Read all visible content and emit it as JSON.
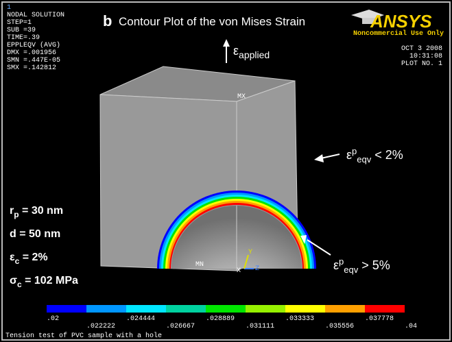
{
  "header": {
    "panel_label": "b",
    "title": "Contour Plot of the von Mises Strain"
  },
  "info": [
    "1",
    "NODAL SOLUTION",
    "STEP=1",
    "SUB =39",
    "TIME=.39",
    "EPPLEQV   (AVG)",
    "DMX =.001956",
    "SMN =.447E-05",
    "SMX =.142812"
  ],
  "logo": {
    "name": "ANSYS",
    "note": "Noncommercial Use Only"
  },
  "stamp": [
    "OCT  3 2008",
    "10:31:08",
    "PLOT NO.   1"
  ],
  "annotations": {
    "applied": {
      "symbol": "ε",
      "sub": "applied"
    },
    "low": {
      "symbol": "ε",
      "sup": "p",
      "sub": "eqv",
      "text": " < 2%"
    },
    "high": {
      "symbol": "ε",
      "sup": "p",
      "sub": "eqv",
      "text": " > 5%"
    }
  },
  "params": [
    {
      "base": "r",
      "sub": "p",
      "text": " = 30 nm"
    },
    {
      "base": "d = 50 nm"
    },
    {
      "base": "ε",
      "sub": "c",
      "text": " = 2%"
    },
    {
      "base": "σ",
      "sub": "c",
      "text": " = 102 MPa"
    }
  ],
  "markers": {
    "mx": "MX",
    "mn": "MN",
    "y": "Y",
    "x": "X",
    "z": "Z"
  },
  "legend": {
    "colors": [
      "#0000ff",
      "#0096ff",
      "#00e6ff",
      "#00d2a0",
      "#00e600",
      "#96f000",
      "#ffff00",
      "#ffa000",
      "#ff0000"
    ],
    "labels": [
      ".02",
      ".022222",
      ".024444",
      ".026667",
      ".028889",
      ".031111",
      ".033333",
      ".035556",
      ".037778",
      ".04"
    ]
  },
  "footer": "Tension test of PVC sample with a hole"
}
